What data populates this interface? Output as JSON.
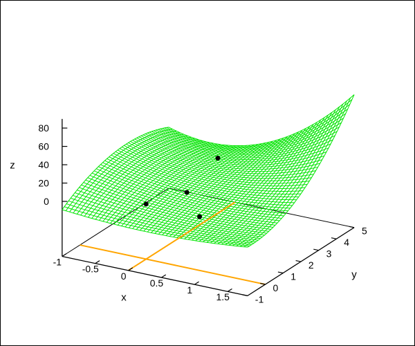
{
  "figure": {
    "background": "#ffffff",
    "border_color": "#000000",
    "text_color": "#000000"
  },
  "chart_data": {
    "type": "surface3d",
    "title": "",
    "axes": {
      "x": {
        "label": "x",
        "min": -1,
        "max": 1.8,
        "ticks": [
          -1,
          -0.5,
          0,
          0.5,
          1,
          1.5
        ],
        "tick_labels": [
          "-1",
          "-0.5",
          "0",
          "0.5",
          "1",
          "1.5"
        ]
      },
      "y": {
        "label": "y",
        "min": -1,
        "max": 5,
        "ticks": [
          -1,
          0,
          1,
          2,
          3,
          4,
          5
        ],
        "tick_labels": [
          "-1",
          "0",
          "1",
          "2",
          "3",
          "4",
          "5"
        ]
      },
      "z": {
        "label": "z",
        "min": -10,
        "max": 90,
        "ticks": [
          0,
          20,
          40,
          60,
          80
        ],
        "tick_labels": [
          "0",
          "20",
          "40",
          "60",
          "80"
        ],
        "plane_level": -60
      }
    },
    "surface": {
      "color": "#00e400",
      "isolines": 50,
      "samples": 60,
      "model": "biquadratic-control-grid",
      "control_x": [
        -1,
        0.4,
        1.8
      ],
      "control_y": [
        -1,
        2,
        5
      ],
      "control_z": [
        [
          -9,
          -13.5,
          -7
        ],
        [
          17,
          2,
          14
        ],
        [
          6.5,
          10,
          85
        ]
      ]
    },
    "zero_axis_lines": {
      "color": "#ffa500",
      "lines": [
        {
          "name": "x-equals-0",
          "from": {
            "x": 0,
            "y": -1
          },
          "to": {
            "x": 0,
            "y": 5
          }
        },
        {
          "name": "y-equals-0",
          "from": {
            "x": -1,
            "y": 0
          },
          "to": {
            "x": 1.8,
            "y": 0
          }
        }
      ]
    },
    "points": {
      "color": "#000000",
      "radius": 3.5,
      "data": [
        {
          "x": 0.6,
          "y": 1.8,
          "z": 37
        },
        {
          "x": 0.4,
          "y": 0.8,
          "z": 9
        },
        {
          "x": 0.0,
          "y": 0.0,
          "z": 0
        },
        {
          "x": 0.7,
          "y": 0.4,
          "z": -8
        }
      ]
    }
  }
}
